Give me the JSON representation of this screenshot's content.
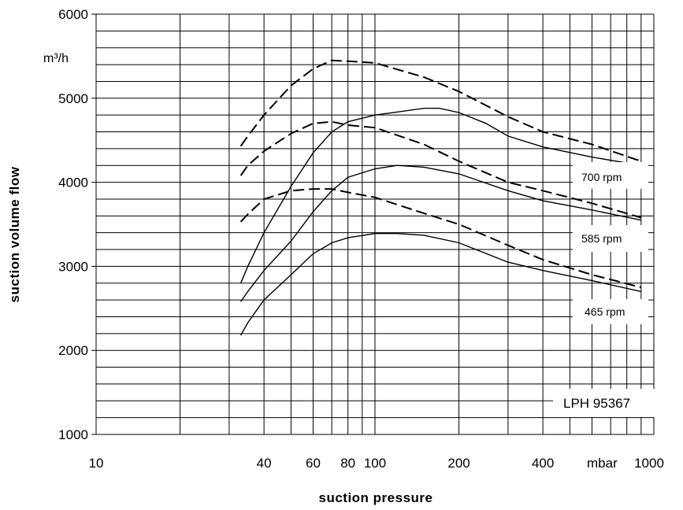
{
  "chart_data": {
    "type": "line",
    "xlabel": "suction pressure",
    "ylabel": "suction volume flow",
    "x_unit": "mbar",
    "y_unit": "m³/h",
    "x_scale": "log",
    "xlim": [
      10,
      1000
    ],
    "ylim": [
      1000,
      6000
    ],
    "grid": true,
    "x_tick_labels": [
      {
        "value": 10,
        "label": "10"
      },
      {
        "value": 40,
        "label": "40"
      },
      {
        "value": 60,
        "label": "60"
      },
      {
        "value": 80,
        "label": "80"
      },
      {
        "value": 100,
        "label": "100"
      },
      {
        "value": 200,
        "label": "200"
      },
      {
        "value": 400,
        "label": "400"
      },
      {
        "value": 1000,
        "label": "1000"
      }
    ],
    "y_tick_labels": [
      {
        "value": 1000,
        "label": "1000"
      },
      {
        "value": 2000,
        "label": "2000"
      },
      {
        "value": 3000,
        "label": "3000"
      },
      {
        "value": 4000,
        "label": "4000"
      },
      {
        "value": 5000,
        "label": "5000"
      },
      {
        "value": 6000,
        "label": "6000"
      }
    ],
    "series": [
      {
        "name": "700 rpm",
        "style": "solid",
        "x": [
          33,
          35,
          40,
          50,
          60,
          70,
          80,
          100,
          150,
          170,
          200,
          250,
          300,
          400,
          600,
          900
        ],
        "y": [
          2800,
          3000,
          3400,
          3950,
          4350,
          4600,
          4720,
          4800,
          4880,
          4880,
          4830,
          4700,
          4550,
          4420,
          4300,
          4200
        ]
      },
      {
        "name": "700 rpm",
        "style": "dashed",
        "x": [
          33,
          35,
          40,
          50,
          60,
          70,
          80,
          100,
          150,
          200,
          300,
          400,
          600,
          900
        ],
        "y": [
          4430,
          4550,
          4800,
          5150,
          5350,
          5450,
          5440,
          5420,
          5250,
          5080,
          4780,
          4600,
          4450,
          4250
        ]
      },
      {
        "name": "585 rpm",
        "style": "solid",
        "x": [
          33,
          35,
          40,
          50,
          60,
          70,
          80,
          100,
          120,
          150,
          200,
          300,
          400,
          600,
          900
        ],
        "y": [
          2580,
          2700,
          2950,
          3300,
          3650,
          3900,
          4060,
          4160,
          4200,
          4180,
          4100,
          3900,
          3780,
          3670,
          3550
        ]
      },
      {
        "name": "585 rpm",
        "style": "dashed",
        "x": [
          33,
          35,
          40,
          50,
          60,
          70,
          80,
          100,
          150,
          200,
          300,
          400,
          600,
          900
        ],
        "y": [
          4080,
          4200,
          4370,
          4580,
          4700,
          4720,
          4680,
          4650,
          4450,
          4250,
          4000,
          3900,
          3750,
          3580
        ]
      },
      {
        "name": "465 rpm",
        "style": "solid",
        "x": [
          33,
          35,
          40,
          50,
          60,
          70,
          80,
          100,
          120,
          150,
          200,
          300,
          400,
          600,
          900
        ],
        "y": [
          2180,
          2330,
          2600,
          2900,
          3150,
          3280,
          3340,
          3390,
          3390,
          3370,
          3280,
          3050,
          2950,
          2830,
          2700
        ]
      },
      {
        "name": "465 rpm",
        "style": "dashed",
        "x": [
          33,
          35,
          40,
          50,
          60,
          70,
          80,
          100,
          150,
          200,
          300,
          400,
          600,
          900
        ],
        "y": [
          3530,
          3620,
          3800,
          3900,
          3920,
          3920,
          3880,
          3820,
          3630,
          3500,
          3250,
          3080,
          2900,
          2750
        ]
      }
    ],
    "annotations": [
      "700 rpm",
      "585 rpm",
      "465 rpm",
      "LPH 95367"
    ]
  },
  "labels": {
    "xlabel": "suction pressure",
    "ylabel": "suction volume flow",
    "x_unit": "mbar",
    "y_unit": "m³/h",
    "rpm_700": "700 rpm",
    "rpm_585": "585 rpm",
    "rpm_465": "465 rpm",
    "model": "LPH 95367"
  }
}
